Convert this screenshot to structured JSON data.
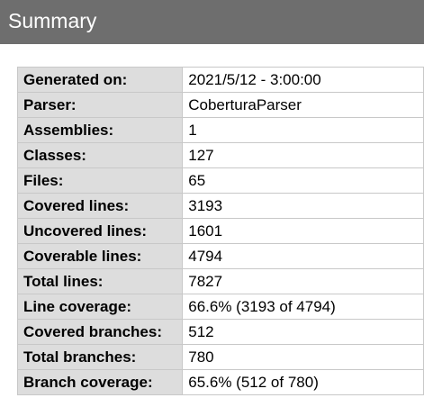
{
  "header": {
    "title": "Summary"
  },
  "rows": [
    {
      "label": "Generated on:",
      "value": "2021/5/12 - 3:00:00"
    },
    {
      "label": "Parser:",
      "value": "CoberturaParser"
    },
    {
      "label": "Assemblies:",
      "value": "1"
    },
    {
      "label": "Classes:",
      "value": "127"
    },
    {
      "label": "Files:",
      "value": "65"
    },
    {
      "label": "Covered lines:",
      "value": "3193"
    },
    {
      "label": "Uncovered lines:",
      "value": "1601"
    },
    {
      "label": "Coverable lines:",
      "value": "4794"
    },
    {
      "label": "Total lines:",
      "value": "7827"
    },
    {
      "label": "Line coverage:",
      "value": "66.6% (3193 of 4794)"
    },
    {
      "label": "Covered branches:",
      "value": "512"
    },
    {
      "label": "Total branches:",
      "value": "780"
    },
    {
      "label": "Branch coverage:",
      "value": "65.6% (512 of 780)"
    }
  ]
}
